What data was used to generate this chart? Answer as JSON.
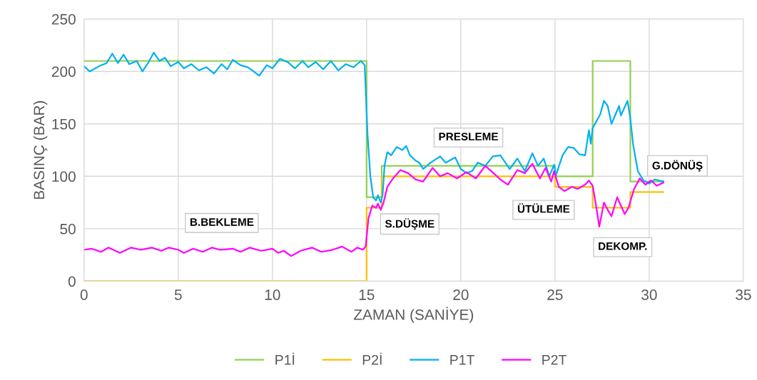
{
  "chart_data": {
    "type": "line",
    "xlabel": "ZAMAN (SANİYE)",
    "ylabel": "BASINÇ (BAR)",
    "xlim": [
      0,
      35
    ],
    "xticks": [
      0,
      5,
      10,
      15,
      20,
      25,
      30,
      35
    ],
    "ylim": [
      0,
      250
    ],
    "yticks": [
      0,
      50,
      100,
      150,
      200,
      250
    ],
    "grid": true,
    "legend": "bottom",
    "marker": "none",
    "line_style": "solid",
    "series": [
      {
        "name": "P1İ",
        "type": "step",
        "color": "#92d050",
        "x": [
          0,
          15,
          15.8,
          25,
          27,
          29,
          30.75
        ],
        "values": [
          210,
          80,
          110,
          100,
          210,
          95,
          95
        ]
      },
      {
        "name": "P2İ",
        "type": "step",
        "color": "#ffc000",
        "x": [
          0,
          15,
          15.8,
          25,
          27,
          29,
          30.75
        ],
        "values": [
          0,
          70,
          100,
          90,
          70,
          85,
          85
        ]
      },
      {
        "name": "P1T",
        "color": "#00b0f0",
        "x": [
          0,
          0.3,
          0.8,
          1.2,
          1.5,
          1.8,
          2.1,
          2.4,
          2.8,
          3.1,
          3.4,
          3.7,
          4.0,
          4.3,
          4.6,
          5.0,
          5.3,
          5.7,
          6.1,
          6.5,
          6.9,
          7.3,
          7.6,
          7.9,
          8.3,
          8.7,
          9.0,
          9.3,
          9.7,
          10.0,
          10.4,
          10.8,
          11.2,
          11.6,
          11.9,
          12.3,
          12.7,
          13.1,
          13.5,
          13.9,
          14.3,
          14.7,
          14.9,
          15.05,
          15.2,
          15.35,
          15.5,
          15.6,
          15.75,
          15.85,
          15.95,
          16.1,
          16.3,
          16.6,
          16.9,
          17.1,
          17.3,
          17.6,
          17.8,
          18.0,
          18.4,
          18.9,
          19.2,
          19.7,
          20.0,
          20.3,
          20.6,
          20.9,
          21.3,
          21.7,
          22.1,
          22.6,
          23.0,
          23.4,
          23.8,
          24.1,
          24.4,
          24.7,
          24.95,
          25.05,
          25.4,
          25.7,
          26.0,
          26.3,
          26.6,
          26.8,
          26.9,
          27.0,
          27.4,
          27.6,
          27.8,
          28.0,
          28.4,
          28.5,
          28.85,
          29.0,
          29.15,
          29.4,
          29.7,
          30.0,
          30.3,
          30.75
        ],
        "values": [
          205,
          200,
          205,
          208,
          217,
          208,
          216,
          207,
          210,
          200,
          208,
          218,
          210,
          213,
          205,
          209,
          203,
          207,
          201,
          204,
          198,
          207,
          202,
          211,
          206,
          204,
          200,
          196,
          206,
          203,
          212,
          209,
          203,
          210,
          204,
          209,
          202,
          210,
          201,
          207,
          204,
          210,
          206,
          140,
          100,
          80,
          77,
          82,
          75,
          82,
          110,
          123,
          120,
          128,
          125,
          129,
          120,
          115,
          113,
          107,
          113,
          119,
          113,
          118,
          107,
          103,
          105,
          113,
          110,
          119,
          120,
          107,
          117,
          105,
          122,
          110,
          117,
          100,
          111,
          101,
          120,
          128,
          127,
          121,
          120,
          144,
          131,
          146,
          159,
          172,
          167,
          150,
          167,
          158,
          172,
          155,
          130,
          105,
          96,
          93,
          97,
          95
        ]
      },
      {
        "name": "P2T",
        "color": "#ff00ff",
        "x": [
          0,
          0.4,
          0.9,
          1.3,
          1.9,
          2.5,
          3.0,
          3.6,
          4.1,
          4.5,
          5.0,
          5.3,
          5.8,
          6.3,
          6.8,
          7.2,
          7.9,
          8.3,
          8.8,
          9.4,
          10.0,
          10.3,
          10.6,
          11.0,
          11.5,
          12.1,
          12.6,
          13.2,
          13.7,
          14.2,
          14.5,
          14.8,
          14.95,
          15.1,
          15.3,
          15.5,
          15.6,
          15.75,
          15.9,
          16.1,
          16.4,
          16.8,
          17.2,
          17.6,
          18.0,
          18.5,
          18.9,
          19.3,
          19.8,
          20.3,
          20.8,
          21.3,
          21.8,
          22.1,
          22.5,
          23.0,
          23.4,
          23.8,
          24.2,
          24.5,
          24.8,
          24.95,
          25.2,
          25.5,
          25.9,
          26.2,
          26.6,
          26.8,
          27.0,
          27.2,
          27.35,
          27.6,
          27.8,
          28.0,
          28.3,
          28.5,
          28.7,
          28.9,
          29.2,
          29.5,
          29.8,
          30.1,
          30.4,
          30.75
        ],
        "values": [
          30,
          31,
          28,
          32,
          27,
          32,
          30,
          32,
          29,
          32,
          30,
          27,
          31,
          28,
          32,
          30,
          31,
          28,
          32,
          29,
          31,
          27,
          29,
          24,
          29,
          32,
          28,
          30,
          33,
          28,
          32,
          30,
          33,
          60,
          72,
          70,
          74,
          68,
          75,
          90,
          98,
          106,
          103,
          97,
          95,
          108,
          100,
          103,
          98,
          104,
          98,
          110,
          102,
          97,
          92,
          106,
          103,
          112,
          98,
          108,
          95,
          105,
          90,
          86,
          90,
          88,
          92,
          96,
          91,
          70,
          52,
          75,
          68,
          62,
          80,
          72,
          64,
          70,
          88,
          98,
          92,
          96,
          91,
          94
        ]
      }
    ],
    "annotations": [
      "B.BEKLEME",
      "S.DÜŞME",
      "PRESLEME",
      "ÜTÜLEME",
      "DEKOMP.",
      "G.DÖNÜŞ"
    ]
  }
}
